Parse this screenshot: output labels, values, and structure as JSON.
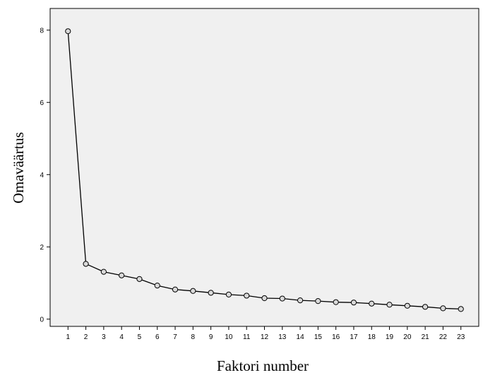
{
  "chart_data": {
    "type": "line",
    "title": "",
    "xlabel": "Faktori number",
    "ylabel": "Omaväärtus",
    "x": [
      1,
      2,
      3,
      4,
      5,
      6,
      7,
      8,
      9,
      10,
      11,
      12,
      13,
      14,
      15,
      16,
      17,
      18,
      19,
      20,
      21,
      22,
      23
    ],
    "series": [
      {
        "values": [
          7.97,
          1.53,
          1.31,
          1.21,
          1.11,
          0.93,
          0.82,
          0.78,
          0.73,
          0.68,
          0.65,
          0.58,
          0.57,
          0.52,
          0.5,
          0.47,
          0.46,
          0.43,
          0.4,
          0.37,
          0.34,
          0.3,
          0.28
        ]
      }
    ],
    "xlim": [
      0,
      24
    ],
    "ylim": [
      -0.2,
      8.6
    ],
    "yticks": [
      0,
      2,
      4,
      6,
      8
    ],
    "grid": false,
    "marker": "circle",
    "colors": {
      "plot_background": "#f0f0f0",
      "line": "#000000",
      "marker_fill": "#d9d9d9",
      "marker_stroke": "#000000"
    }
  }
}
